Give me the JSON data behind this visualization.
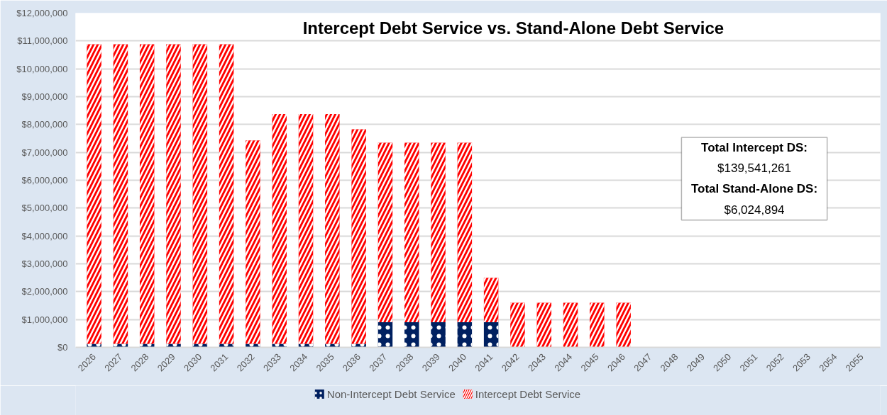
{
  "chart_data": {
    "type": "bar",
    "title": "Intercept Debt Service vs. Stand-Alone Debt Service",
    "categories": [
      "2026",
      "2027",
      "2028",
      "2029",
      "2030",
      "2031",
      "2032",
      "2033",
      "2034",
      "2035",
      "2036",
      "2037",
      "2038",
      "2039",
      "2040",
      "2041",
      "2042",
      "2043",
      "2044",
      "2045",
      "2046",
      "2047",
      "2048",
      "2049",
      "2050",
      "2051",
      "2052",
      "2053",
      "2054",
      "2055"
    ],
    "series": [
      {
        "name": "Non-Intercept Debt Service",
        "color": "#002060",
        "values": [
          130000,
          130000,
          130000,
          130000,
          130000,
          130000,
          130000,
          130000,
          130000,
          130000,
          130000,
          900000,
          900000,
          900000,
          900000,
          900000,
          0,
          0,
          0,
          0,
          0,
          0,
          0,
          0,
          0,
          0,
          0,
          0,
          0,
          0
        ]
      },
      {
        "name": "Intercept Debt Service",
        "color": "#ff0000",
        "values": [
          10750000,
          10750000,
          10750000,
          10750000,
          10750000,
          10750000,
          7300000,
          8250000,
          8250000,
          8250000,
          7700000,
          6450000,
          6450000,
          6450000,
          6450000,
          1600000,
          1600000,
          1600000,
          1600000,
          1600000,
          1600000,
          0,
          0,
          0,
          0,
          0,
          0,
          0,
          0,
          0
        ]
      }
    ],
    "stacked": true,
    "ylim": [
      0,
      12000000
    ],
    "yticks": [
      {
        "value": 0,
        "label": "$0"
      },
      {
        "value": 1000000,
        "label": "$1,000,000"
      },
      {
        "value": 2000000,
        "label": "$2,000,000"
      },
      {
        "value": 3000000,
        "label": "$3,000,000"
      },
      {
        "value": 4000000,
        "label": "$4,000,000"
      },
      {
        "value": 5000000,
        "label": "$5,000,000"
      },
      {
        "value": 6000000,
        "label": "$6,000,000"
      },
      {
        "value": 7000000,
        "label": "$7,000,000"
      },
      {
        "value": 8000000,
        "label": "$8,000,000"
      },
      {
        "value": 9000000,
        "label": "$9,000,000"
      },
      {
        "value": 10000000,
        "label": "$10,000,000"
      },
      {
        "value": 11000000,
        "label": "$11,000,000"
      },
      {
        "value": 12000000,
        "label": "$12,000,000"
      }
    ],
    "annotations": [
      "Total Intercept DS:",
      "$139,541,261",
      "Total Stand-Alone DS:",
      "$6,024,894"
    ],
    "grid": "y",
    "legend": "bottom"
  }
}
